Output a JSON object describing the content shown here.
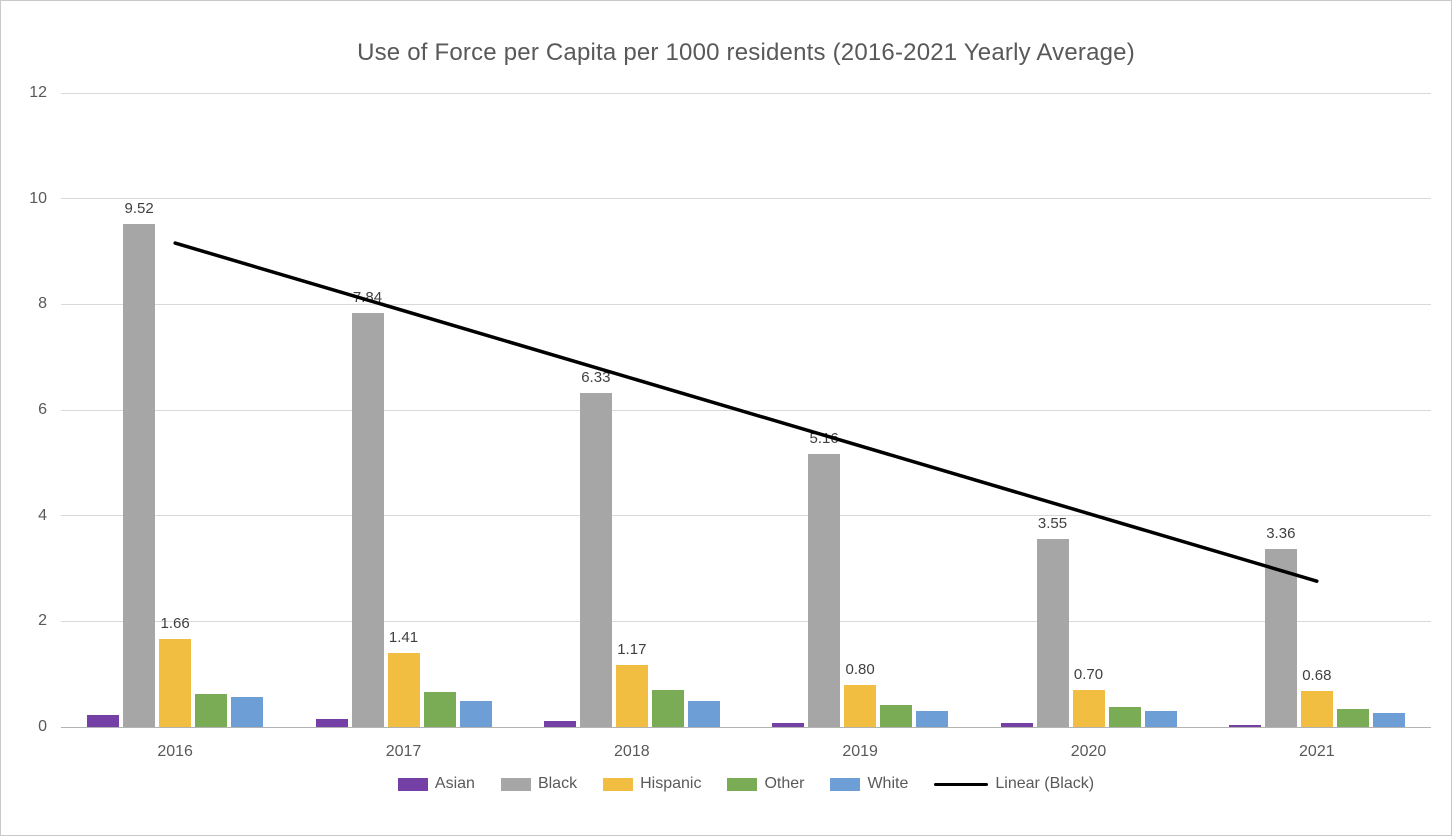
{
  "chart_data": {
    "type": "bar",
    "title": "Use of Force per Capita per 1000 residents (2016-2021 Yearly Average)",
    "categories": [
      "2016",
      "2017",
      "2018",
      "2019",
      "2020",
      "2021"
    ],
    "series": [
      {
        "name": "Asian",
        "color": "#7440A5",
        "values": [
          0.22,
          0.16,
          0.11,
          0.07,
          0.07,
          0.04
        ]
      },
      {
        "name": "Black",
        "color": "#A6A6A6",
        "values": [
          9.52,
          7.84,
          6.33,
          5.16,
          3.55,
          3.36
        ],
        "data_labels": [
          "9.52",
          "7.84",
          "6.33",
          "5.16",
          "3.55",
          "3.36"
        ]
      },
      {
        "name": "Hispanic",
        "color": "#F2BE42",
        "values": [
          1.66,
          1.41,
          1.17,
          0.8,
          0.7,
          0.68
        ],
        "data_labels": [
          "1.66",
          "1.41",
          "1.17",
          "0.80",
          "0.70",
          "0.68"
        ]
      },
      {
        "name": "Other",
        "color": "#7AAC55",
        "values": [
          0.63,
          0.67,
          0.7,
          0.41,
          0.37,
          0.35
        ]
      },
      {
        "name": "White",
        "color": "#6D9ED6",
        "values": [
          0.57,
          0.49,
          0.49,
          0.31,
          0.3,
          0.27
        ]
      }
    ],
    "trendline": {
      "label": "Linear (Black)",
      "color": "#000000",
      "start_value": 9.16,
      "end_value": 2.76
    },
    "y_axis": {
      "min": 0,
      "max": 12,
      "ticks": [
        0,
        2,
        4,
        6,
        8,
        10,
        12
      ]
    },
    "xlabel": "",
    "ylabel": "",
    "legend_position": "bottom",
    "grid": true
  },
  "styles": {
    "text_color": "#595959",
    "data_label_color": "#404040",
    "gridline_color": "#D9D9D9",
    "axis_line_color": "#B3B3B3",
    "background": "#FFFFFF"
  }
}
